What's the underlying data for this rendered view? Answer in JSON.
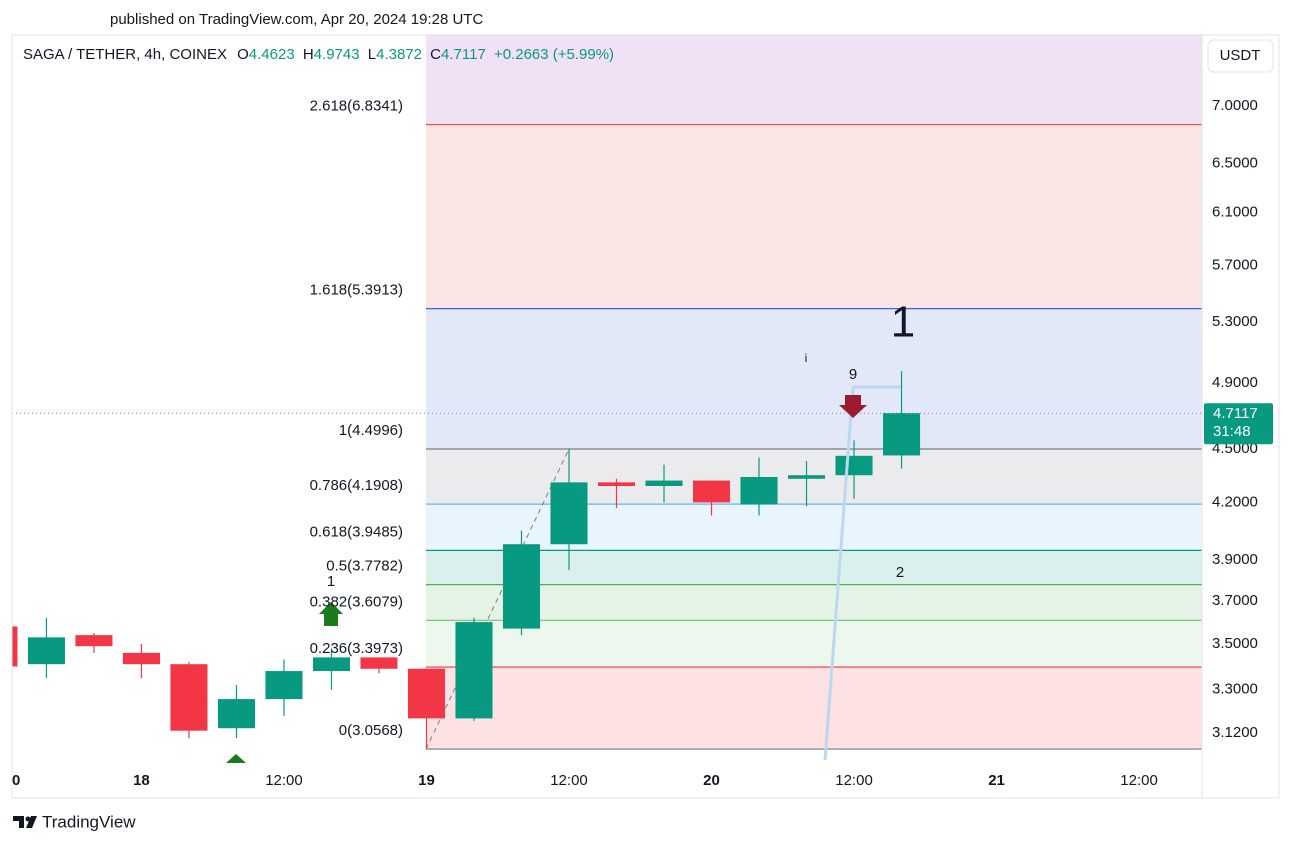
{
  "published": "published on TradingView.com, Apr 20, 2024 19:28 UTC",
  "footer": "TradingView",
  "chart_data": {
    "type": "candlestick",
    "title": "SAGA / TETHER, 4h, COINEX",
    "legend_ohlc": [
      {
        "key": "O",
        "value": 4.4623
      },
      {
        "key": "H",
        "value": 4.9743
      },
      {
        "key": "L",
        "value": 4.3872
      },
      {
        "key": "C",
        "value": 4.7117
      }
    ],
    "change": {
      "value": 0.2663,
      "label": "+0.2663"
    },
    "change_pct": {
      "value": 5.99,
      "label": "(+5.99%)"
    },
    "currency": "USDT",
    "last_price": 4.7117,
    "countdown": "31:48",
    "log_scale": true,
    "up_color": "#089981",
    "down_color": "#f23645",
    "xlim": [
      -10.9,
      89.3
    ],
    "xticks": [
      {
        "value": -12,
        "label": "0"
      },
      {
        "value": 0,
        "label": "18"
      },
      {
        "value": 12,
        "label": "12:00"
      },
      {
        "value": 24,
        "label": "19"
      },
      {
        "value": 36,
        "label": "12:00"
      },
      {
        "value": 48,
        "label": "20"
      },
      {
        "value": 60,
        "label": "12:00"
      },
      {
        "value": 72,
        "label": "21"
      },
      {
        "value": 84,
        "label": "12:00"
      }
    ],
    "ylim": [
      2.87,
      7.67
    ],
    "yticks": [
      {
        "value": 7.0,
        "label": "7.0000"
      },
      {
        "value": 6.5,
        "label": "6.5000"
      },
      {
        "value": 6.1,
        "label": "6.1000"
      },
      {
        "value": 5.7,
        "label": "5.7000"
      },
      {
        "value": 5.3,
        "label": "5.3000"
      },
      {
        "value": 4.9,
        "label": "4.9000"
      },
      {
        "value": 4.5,
        "label": "4.5000"
      },
      {
        "value": 4.2,
        "label": "4.2000"
      },
      {
        "value": 3.9,
        "label": "3.9000"
      },
      {
        "value": 3.7,
        "label": "3.7000"
      },
      {
        "value": 3.5,
        "label": "3.5000"
      },
      {
        "value": 3.3,
        "label": "3.3000"
      },
      {
        "value": 3.12,
        "label": "3.1200"
      }
    ],
    "x": [
      -12,
      -8,
      -4,
      0,
      4,
      8,
      12,
      16,
      20,
      24,
      28,
      32,
      36,
      40,
      44,
      48,
      52,
      56,
      60,
      64
    ],
    "open": [
      3.58,
      3.41,
      3.54,
      3.46,
      3.41,
      3.14,
      3.26,
      3.38,
      3.44,
      3.39,
      3.18,
      3.57,
      3.98,
      4.31,
      4.29,
      4.32,
      4.19,
      4.33,
      4.35,
      4.4623
    ],
    "high": [
      3.6,
      3.62,
      3.55,
      3.5,
      3.42,
      3.32,
      3.43,
      3.48,
      3.44,
      3.39,
      3.62,
      4.05,
      4.4996,
      4.33,
      4.41,
      4.32,
      4.45,
      4.43,
      4.55,
      4.9743
    ],
    "low": [
      3.38,
      3.35,
      3.46,
      3.35,
      3.1,
      3.1,
      3.19,
      3.3,
      3.37,
      3.0568,
      3.17,
      3.54,
      3.85,
      4.17,
      4.2,
      4.13,
      4.13,
      4.18,
      4.22,
      4.3872
    ],
    "close": [
      3.4,
      3.53,
      3.49,
      3.41,
      3.13,
      3.26,
      3.38,
      3.44,
      3.39,
      3.18,
      3.6,
      3.98,
      4.31,
      4.29,
      4.32,
      4.2,
      4.34,
      4.35,
      4.46,
      4.7117
    ],
    "fib_levels": [
      {
        "value": 6.8341,
        "label": "2.618(6.8341)",
        "color": "#e04e48"
      },
      {
        "value": 5.3913,
        "label": "1.618(5.3913)",
        "color": "#3b64c7"
      },
      {
        "value": 4.4996,
        "label": "1(4.4996)",
        "color": "#787b86"
      },
      {
        "value": 4.1908,
        "label": "0.786(4.1908)",
        "color": "#64b5f6"
      },
      {
        "value": 3.9485,
        "label": "0.618(3.9485)",
        "color": "#089981"
      },
      {
        "value": 3.7782,
        "label": "0.5(3.7782)",
        "color": "#4caf50"
      },
      {
        "value": 3.6079,
        "label": "0.382(3.6079)",
        "color": "#81c784"
      },
      {
        "value": 3.3973,
        "label": "0.236(3.3973)",
        "color": "#f23645"
      },
      {
        "value": 3.0568,
        "label": "0(3.0568)",
        "color": "#787b86"
      }
    ],
    "annotations": [
      "1",
      "9",
      "i",
      "2",
      "1"
    ]
  }
}
